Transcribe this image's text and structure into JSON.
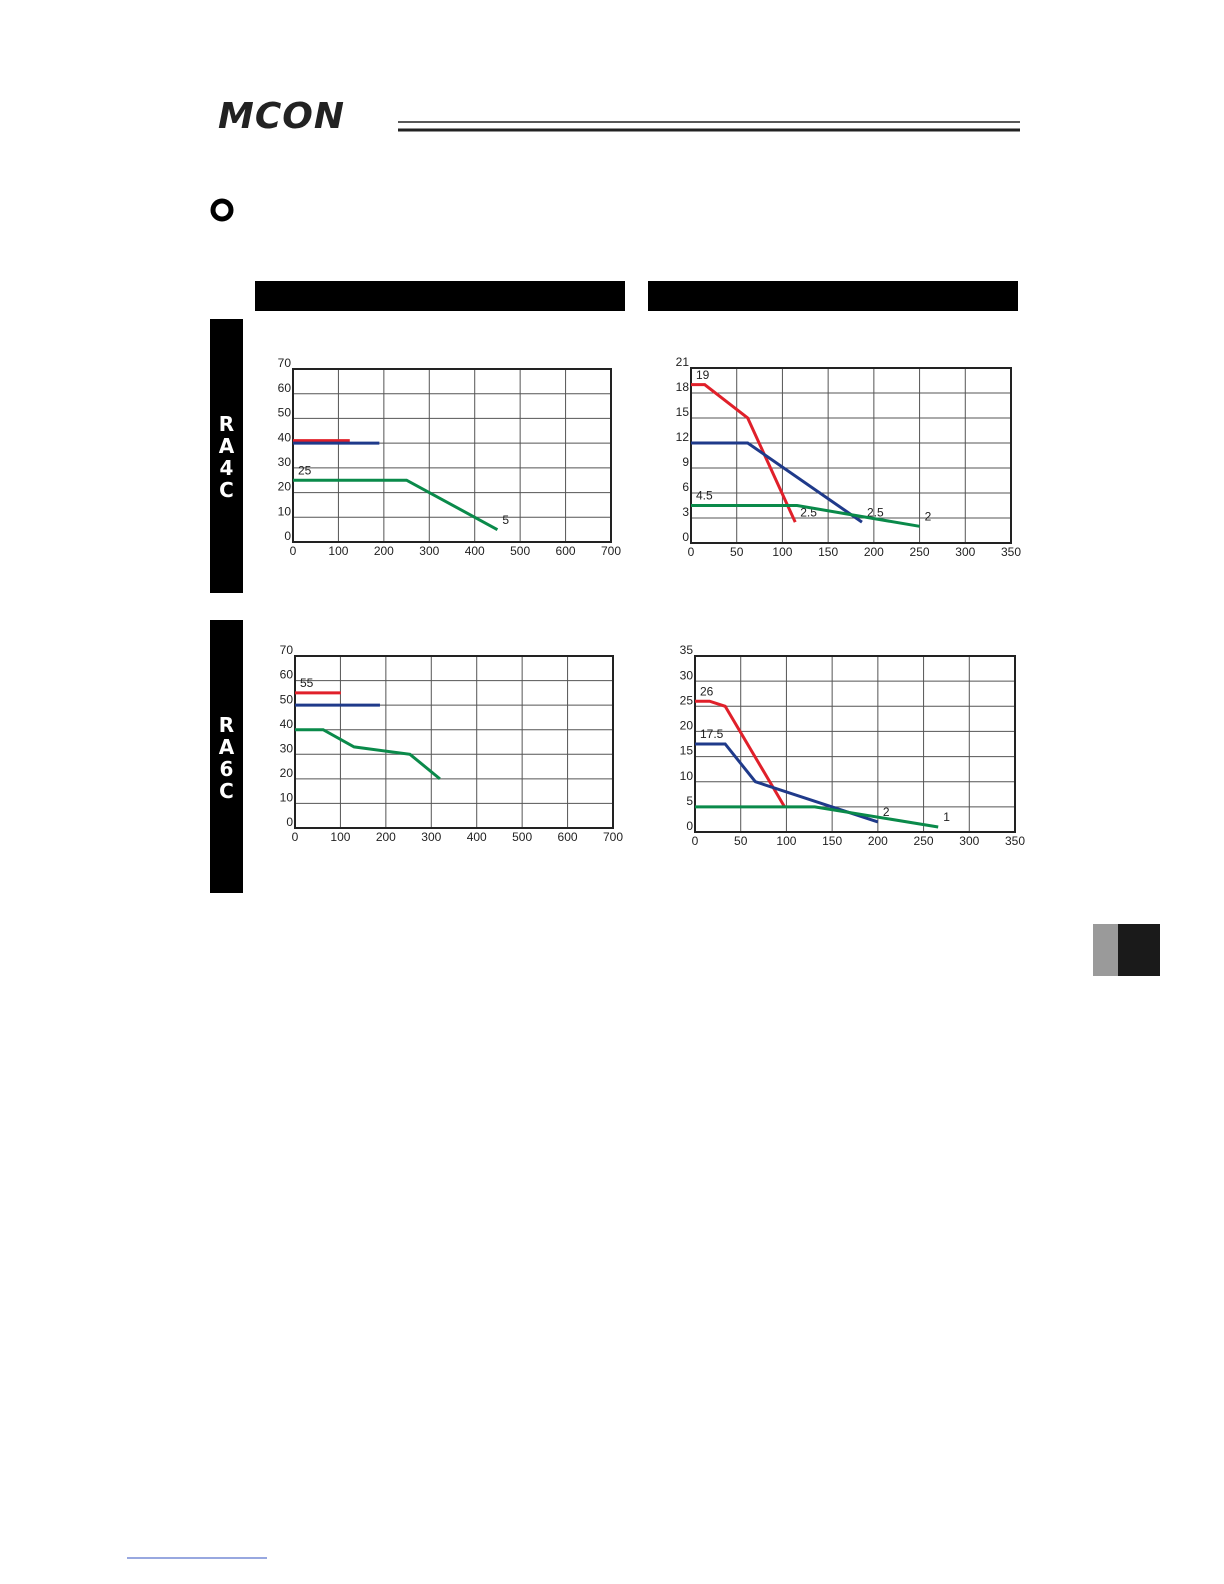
{
  "header": {
    "logo": "MCON"
  },
  "sections": [
    {
      "label": "RA4C"
    },
    {
      "label": "RA6C"
    }
  ],
  "chart_data": [
    {
      "type": "line",
      "grid": true,
      "xlim": [
        0,
        700
      ],
      "xticks": [
        0,
        100,
        200,
        300,
        400,
        500,
        600,
        700
      ],
      "ylim": [
        0,
        70
      ],
      "yticks": [
        0,
        10,
        20,
        30,
        40,
        50,
        60,
        70
      ],
      "series": [
        {
          "color": "#e0202a",
          "x": [
            0,
            125
          ],
          "values": [
            41,
            41
          ]
        },
        {
          "color": "#1f3a8a",
          "x": [
            0,
            190
          ],
          "values": [
            40,
            40
          ]
        },
        {
          "color": "#0a8a4a",
          "x": [
            0,
            250,
            450
          ],
          "values": [
            25,
            25,
            5
          ],
          "value_labels": [
            "25",
            null,
            "5"
          ]
        }
      ]
    },
    {
      "type": "line",
      "grid": true,
      "xlim": [
        0,
        350
      ],
      "xticks": [
        0,
        50,
        100,
        150,
        200,
        250,
        300,
        350
      ],
      "ylim": [
        0,
        21
      ],
      "yticks": [
        0,
        3,
        6,
        9,
        12,
        15,
        18,
        21
      ],
      "series": [
        {
          "color": "#e0202a",
          "x": [
            0,
            15,
            62,
            114
          ],
          "values": [
            19,
            19,
            15,
            2.5
          ],
          "value_labels": [
            "19",
            null,
            null,
            "2.5"
          ]
        },
        {
          "color": "#1f3a8a",
          "x": [
            0,
            62,
            187
          ],
          "values": [
            12,
            12,
            2.5
          ],
          "value_labels": [
            null,
            null,
            "2.5"
          ]
        },
        {
          "color": "#0a8a4a",
          "x": [
            0,
            116,
            250
          ],
          "values": [
            4.5,
            4.5,
            2
          ],
          "value_labels": [
            "4.5",
            null,
            "2"
          ]
        }
      ]
    },
    {
      "type": "line",
      "grid": true,
      "xlim": [
        0,
        700
      ],
      "xticks": [
        0,
        100,
        200,
        300,
        400,
        500,
        600,
        700
      ],
      "ylim": [
        0,
        70
      ],
      "yticks": [
        0,
        10,
        20,
        30,
        40,
        50,
        60,
        70
      ],
      "series": [
        {
          "color": "#e0202a",
          "x": [
            0,
            101
          ],
          "values": [
            55,
            55
          ],
          "value_labels": [
            "55",
            null
          ]
        },
        {
          "color": "#1f3a8a",
          "x": [
            0,
            187
          ],
          "values": [
            50,
            50
          ]
        },
        {
          "color": "#0a8a4a",
          "x": [
            0,
            62,
            130,
            253,
            319
          ],
          "values": [
            40,
            40,
            33,
            30,
            20
          ]
        }
      ]
    },
    {
      "type": "line",
      "grid": true,
      "xlim": [
        0,
        350
      ],
      "xticks": [
        0,
        50,
        100,
        150,
        200,
        250,
        300,
        350
      ],
      "ylim": [
        0,
        35
      ],
      "yticks": [
        0,
        5,
        10,
        15,
        20,
        25,
        30,
        35
      ],
      "series": [
        {
          "color": "#e0202a",
          "x": [
            0,
            16,
            33,
            98
          ],
          "values": [
            26,
            26,
            25,
            5
          ],
          "value_labels": [
            "26",
            null,
            null,
            null
          ]
        },
        {
          "color": "#1f3a8a",
          "x": [
            0,
            33,
            66,
            200
          ],
          "values": [
            17.5,
            17.5,
            10,
            2
          ],
          "value_labels": [
            "17.5",
            null,
            null,
            "2"
          ]
        },
        {
          "color": "#0a8a4a",
          "x": [
            0,
            131,
            266
          ],
          "values": [
            5,
            5,
            1
          ],
          "value_labels": [
            null,
            null,
            "1"
          ]
        }
      ]
    }
  ]
}
